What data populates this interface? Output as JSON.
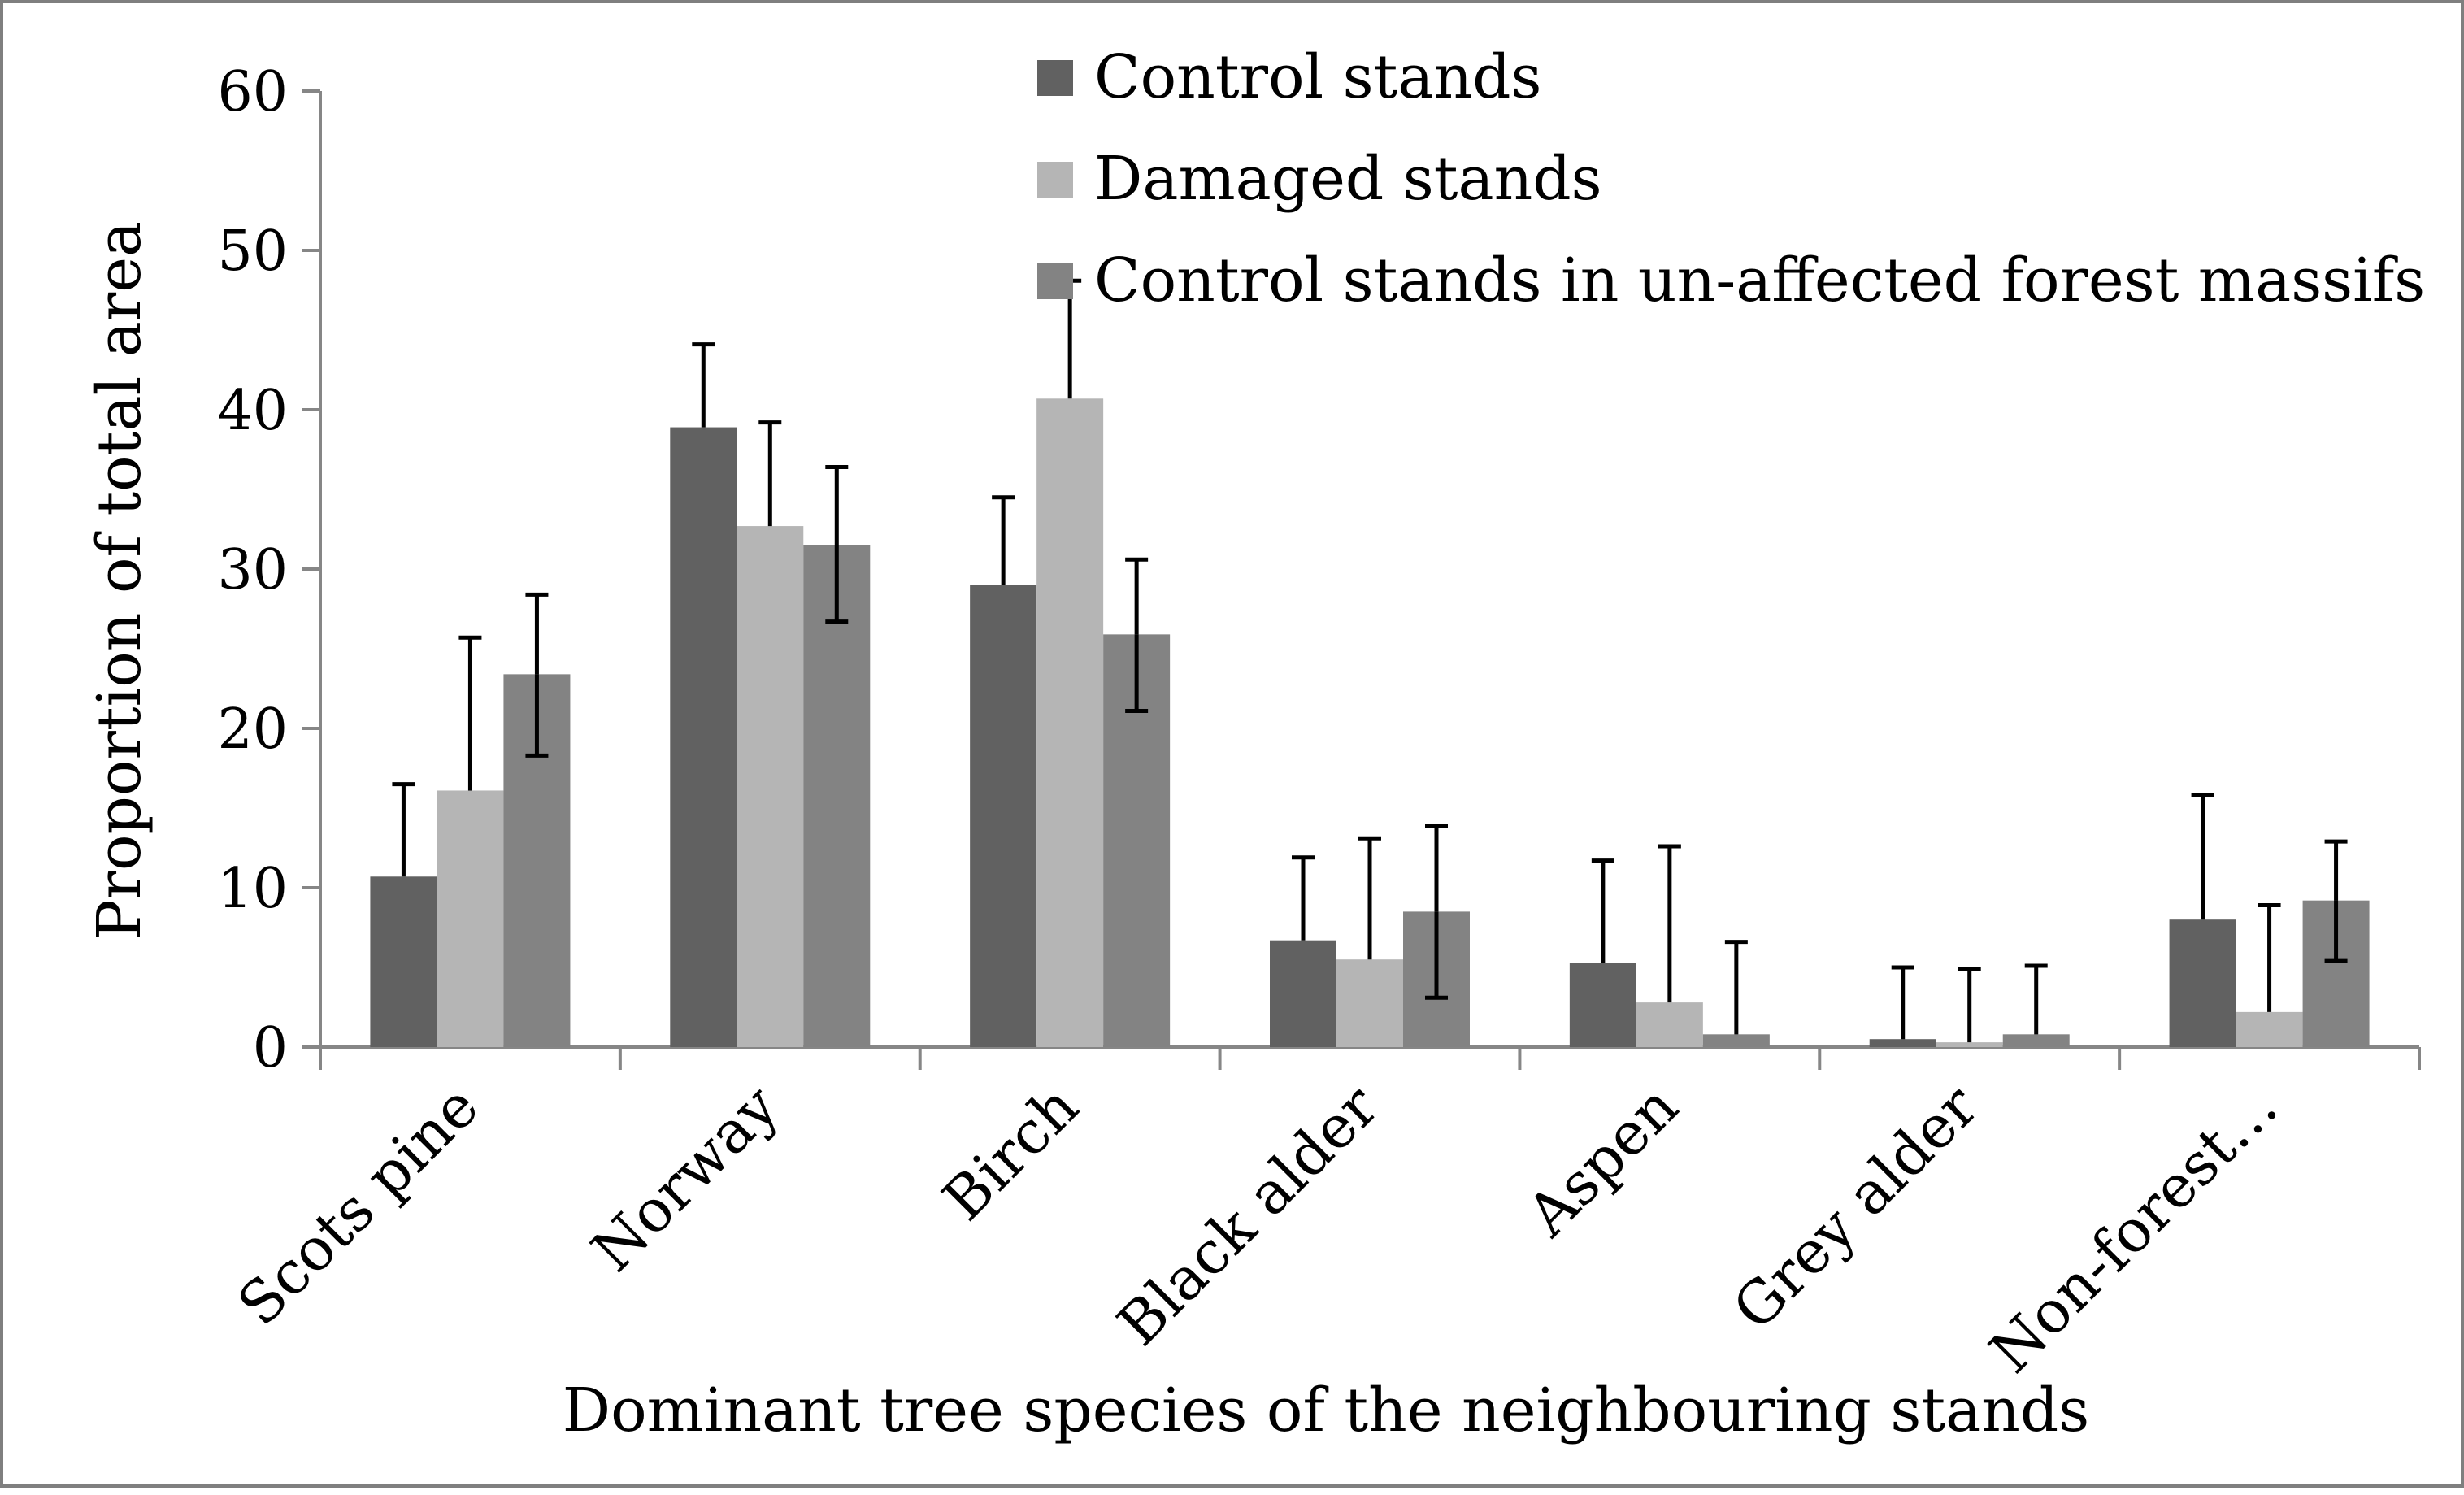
{
  "chart_data": {
    "type": "bar",
    "title": "",
    "xlabel": "Dominant tree species of the neighbouring stands",
    "ylabel": "Proportion of total area",
    "categories": [
      "Scots pine",
      "Norway",
      "Birch",
      "Black alder",
      "Aspen",
      "Grey alder",
      "Non-forest…"
    ],
    "ylim": [
      0,
      60
    ],
    "yticks": [
      "0",
      "10",
      "20",
      "30",
      "40",
      "50",
      "60"
    ],
    "grid": false,
    "legend_position": "top-right",
    "series": [
      {
        "name": "Control stands",
        "color": "#616161",
        "values": [
          10.7,
          38.9,
          29.0,
          6.7,
          5.3,
          0.5,
          8.0
        ],
        "error_upper": [
          16.5,
          44.1,
          34.5,
          11.9,
          11.7,
          5.0,
          15.8
        ]
      },
      {
        "name": "Damaged stands",
        "color": "#b5b5b5",
        "values": [
          16.1,
          32.7,
          40.7,
          5.5,
          2.8,
          0.3,
          2.2
        ],
        "error_upper": [
          25.7,
          39.2,
          48.1,
          13.1,
          12.6,
          4.9,
          8.9
        ]
      },
      {
        "name": "Control stands in un-affected forest massifs",
        "color": "#838383",
        "values": [
          23.4,
          31.5,
          25.9,
          8.5,
          0.8,
          0.8,
          9.2
        ],
        "error_upper": [
          28.4,
          36.4,
          30.6,
          13.9,
          6.6,
          5.1,
          12.9
        ],
        "error_lower": [
          18.3,
          26.7,
          21.1,
          3.1,
          null,
          null,
          5.4
        ]
      }
    ]
  }
}
